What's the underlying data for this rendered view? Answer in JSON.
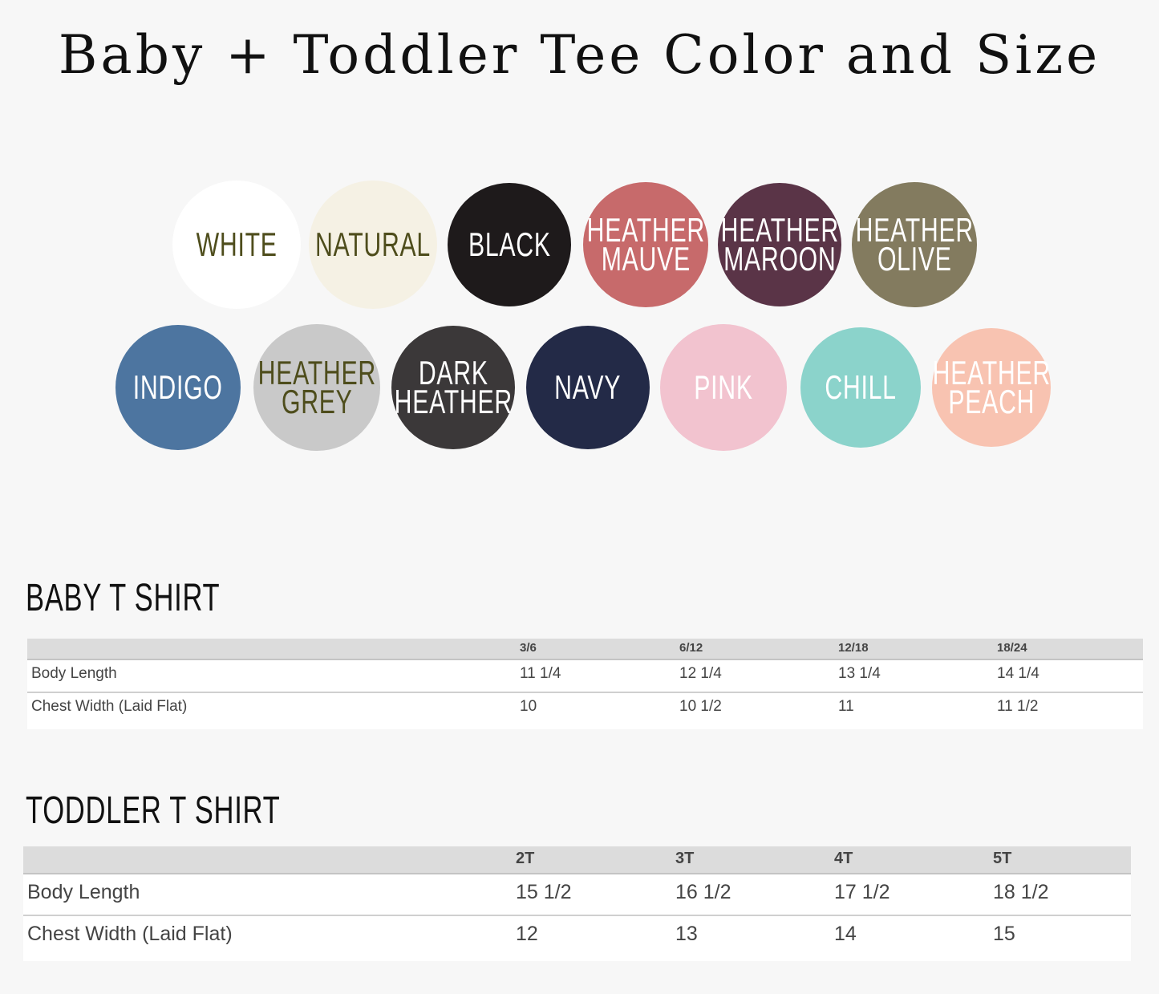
{
  "title": "Baby + Toddler Tee Color and Size",
  "colors": [
    {
      "label": "WHITE",
      "fill": "#ffffff",
      "text_color": "#4e4d1c"
    },
    {
      "label": "NATURAL",
      "fill": "#f5f1e4",
      "text_color": "#4e4d1c"
    },
    {
      "label": "BLACK",
      "fill": "#1e1a1b",
      "text_color": "#ffffff"
    },
    {
      "label": "HEATHER\nMAUVE",
      "fill": "#c76a6b",
      "text_color": "#ffffff"
    },
    {
      "label": "HEATHER\nMAROON",
      "fill": "#5a3447",
      "text_color": "#ffffff"
    },
    {
      "label": "HEATHER\nOLIVE",
      "fill": "#837b5f",
      "text_color": "#ffffff"
    },
    {
      "label": "INDIGO",
      "fill": "#4d75a0",
      "text_color": "#ffffff"
    },
    {
      "label": "HEATHER\nGREY",
      "fill": "#c9c9c9",
      "text_color": "#4e4d1c"
    },
    {
      "label": "DARK\nHEATHER",
      "fill": "#3b3839",
      "text_color": "#ffffff"
    },
    {
      "label": "NAVY",
      "fill": "#232a47",
      "text_color": "#ffffff"
    },
    {
      "label": "PINK",
      "fill": "#f2c3cf",
      "text_color": "#ffffff"
    },
    {
      "label": "CHILL",
      "fill": "#8bd3cb",
      "text_color": "#ffffff"
    },
    {
      "label": "HEATHER\nPEACH",
      "fill": "#f8c3b1",
      "text_color": "#ffffff"
    }
  ],
  "baby": {
    "heading": "BABY T SHIRT",
    "columns": [
      "",
      "3/6",
      "6/12",
      "12/18",
      "18/24"
    ],
    "rows": [
      [
        "Body Length",
        "11 1/4",
        "12 1/4",
        "13 1/4",
        "14 1/4"
      ],
      [
        "Chest Width (Laid Flat)",
        "10",
        "10 1/2",
        "11",
        "11 1/2"
      ]
    ]
  },
  "toddler": {
    "heading": "TODDLER T SHIRT",
    "columns": [
      "",
      "2T",
      "3T",
      "4T",
      "5T"
    ],
    "rows": [
      [
        "Body Length",
        "15 1/2",
        "16 1/2",
        "17 1/2",
        "18 1/2"
      ],
      [
        "Chest Width (Laid Flat)",
        "12",
        "13",
        "14",
        "15"
      ]
    ]
  }
}
